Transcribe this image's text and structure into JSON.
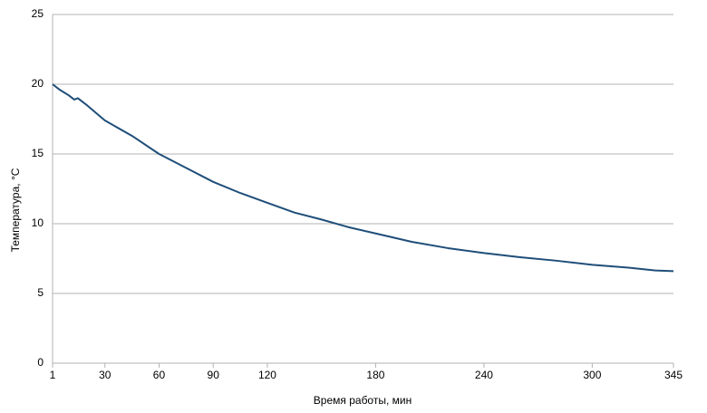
{
  "chart_data": {
    "type": "line",
    "x_label": "Время работы, мин",
    "y_label": "Температура, °C",
    "x": [
      1,
      5,
      10,
      13,
      15,
      20,
      30,
      45,
      60,
      75,
      90,
      105,
      120,
      135,
      150,
      165,
      180,
      200,
      220,
      240,
      260,
      280,
      300,
      320,
      335,
      345
    ],
    "series": [
      {
        "name": "Температура",
        "color": "#1f4e79",
        "values": [
          20.0,
          19.6,
          19.2,
          18.9,
          19.0,
          18.5,
          17.4,
          16.3,
          15.0,
          14.0,
          13.0,
          12.2,
          11.5,
          10.8,
          10.3,
          9.75,
          9.3,
          8.7,
          8.25,
          7.9,
          7.6,
          7.35,
          7.05,
          6.85,
          6.65,
          6.6
        ]
      }
    ],
    "xlim": [
      1,
      345
    ],
    "xticks": [
      1,
      30,
      60,
      90,
      120,
      180,
      240,
      300,
      345
    ],
    "ylim": [
      0,
      25
    ],
    "yticks": [
      0,
      5,
      10,
      15,
      20,
      25
    ],
    "grid": true
  }
}
